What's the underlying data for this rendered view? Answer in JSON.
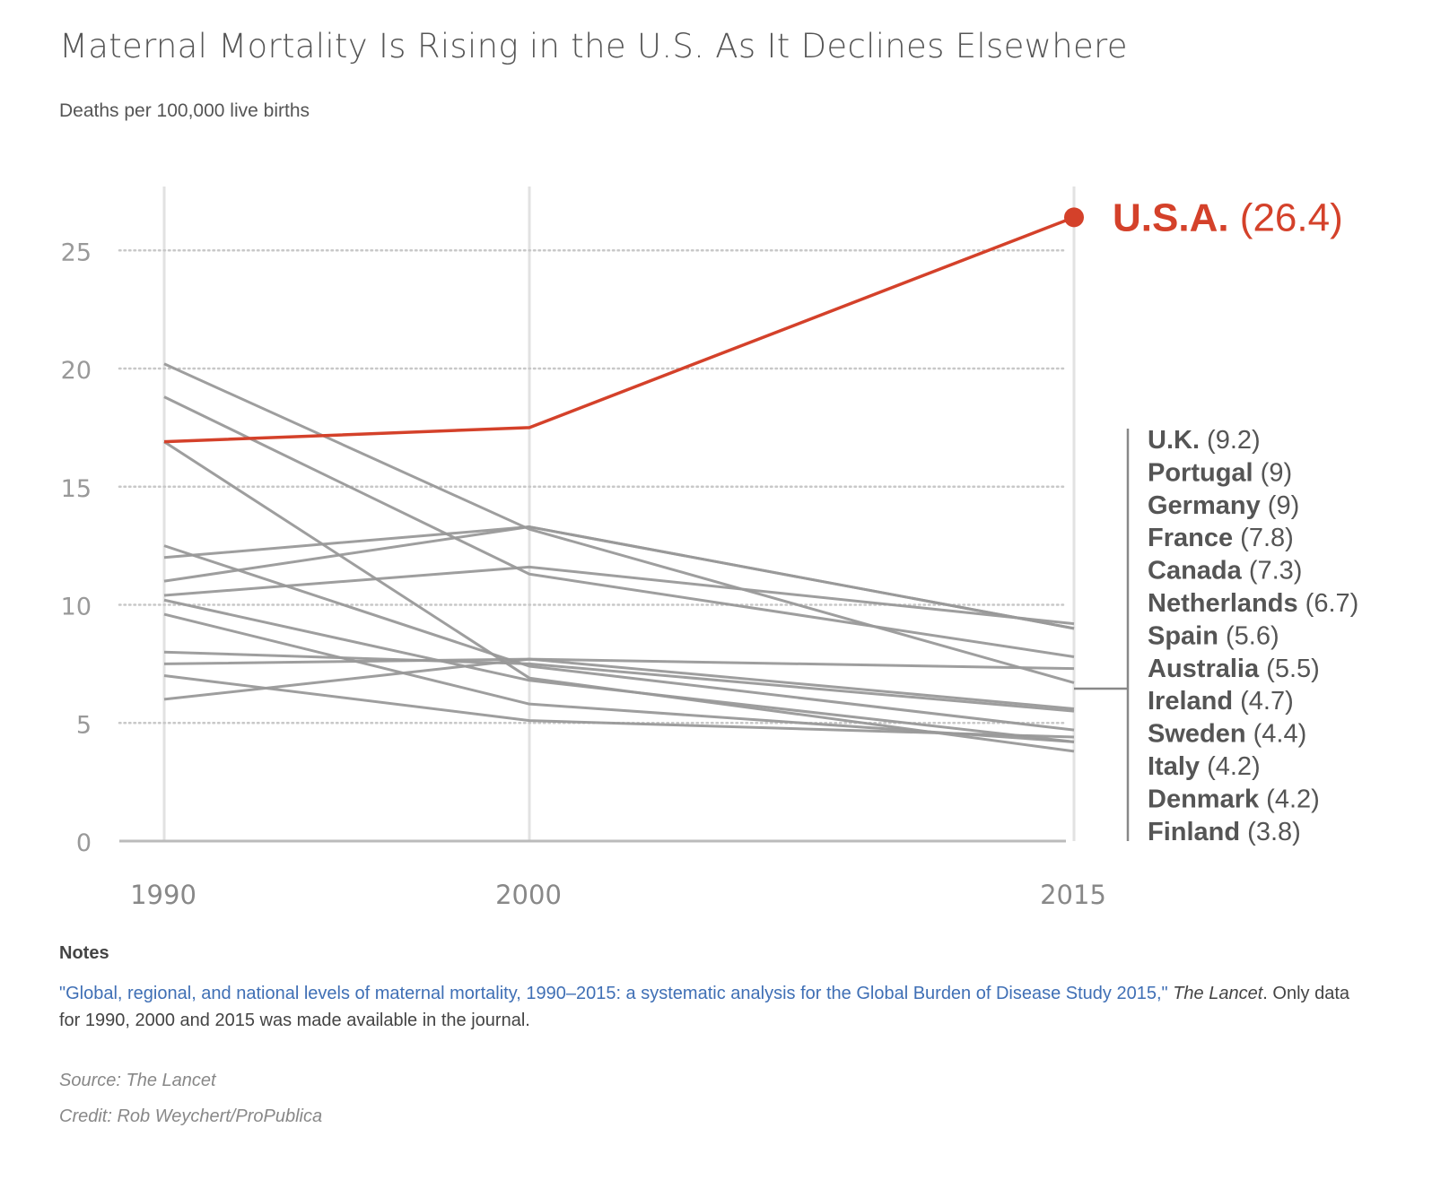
{
  "title": "Maternal Mortality Is Rising in the U.S. As It Declines Elsewhere",
  "subtitle": "Deaths per 100,000 live births",
  "chart_data": {
    "type": "line",
    "title": "Maternal Mortality Is Rising in the U.S. As It Declines Elsewhere",
    "ylabel": "Deaths per 100,000 live births",
    "x": [
      1990,
      2000,
      2015
    ],
    "x_tick_labels": [
      "1990",
      "2000",
      "2015"
    ],
    "ylim": [
      0,
      27
    ],
    "y_ticks": [
      0,
      5,
      10,
      15,
      20,
      25
    ],
    "y_tick_labels": [
      "0",
      "5",
      "10",
      "15",
      "20",
      "25"
    ],
    "grid": "horizontal dotted",
    "highlight": {
      "name": "U.S.A.",
      "label": "(26.4)",
      "color": "#d4412a",
      "values": [
        16.9,
        17.5,
        26.4
      ]
    },
    "series": [
      {
        "name": "U.K.",
        "label": "(9.2)",
        "values": [
          10.4,
          11.6,
          9.2
        ]
      },
      {
        "name": "Portugal",
        "label": "(9)",
        "values": [
          12.0,
          13.3,
          9.0
        ]
      },
      {
        "name": "Germany",
        "label": "(9)",
        "values": [
          11.0,
          13.3,
          9.0
        ]
      },
      {
        "name": "France",
        "label": "(7.8)",
        "values": [
          18.8,
          11.3,
          7.8
        ]
      },
      {
        "name": "Canada",
        "label": "(7.3)",
        "values": [
          7.5,
          7.7,
          7.3
        ]
      },
      {
        "name": "Netherlands",
        "label": "(6.7)",
        "values": [
          20.2,
          13.2,
          6.7
        ]
      },
      {
        "name": "Spain",
        "label": "(5.6)",
        "values": [
          6.0,
          7.7,
          5.6
        ]
      },
      {
        "name": "Australia",
        "label": "(5.5)",
        "values": [
          8.0,
          7.5,
          5.5
        ]
      },
      {
        "name": "Ireland",
        "label": "(4.7)",
        "values": [
          12.5,
          7.4,
          4.7
        ]
      },
      {
        "name": "Sweden",
        "label": "(4.4)",
        "values": [
          7.0,
          5.1,
          4.4
        ]
      },
      {
        "name": "Italy",
        "label": "(4.2)",
        "values": [
          10.2,
          6.8,
          4.2
        ]
      },
      {
        "name": "Denmark",
        "label": "(4.2)",
        "values": [
          9.6,
          5.8,
          4.2
        ]
      },
      {
        "name": "Finland",
        "label": "(3.8)",
        "values": [
          16.9,
          6.9,
          3.8
        ]
      }
    ],
    "colors": {
      "highlight": "#d4412a",
      "others": "#999999",
      "grid": "#c8c8c8",
      "axis": "#bbbbbb",
      "bracket": "#888888"
    }
  },
  "notes": {
    "heading": "Notes",
    "reference": "\"Global, regional, and national levels of maternal mortality, 1990–2015: a systematic analysis for the Global Burden of Disease Study 2015,\"",
    "journal_a": "The",
    "journal_b": "Lancet",
    "rest": ". Only data for 1990, 2000 and 2015 was made available in the journal."
  },
  "source": "Source: The Lancet",
  "credit": "Credit: Rob Weychert/ProPublica"
}
